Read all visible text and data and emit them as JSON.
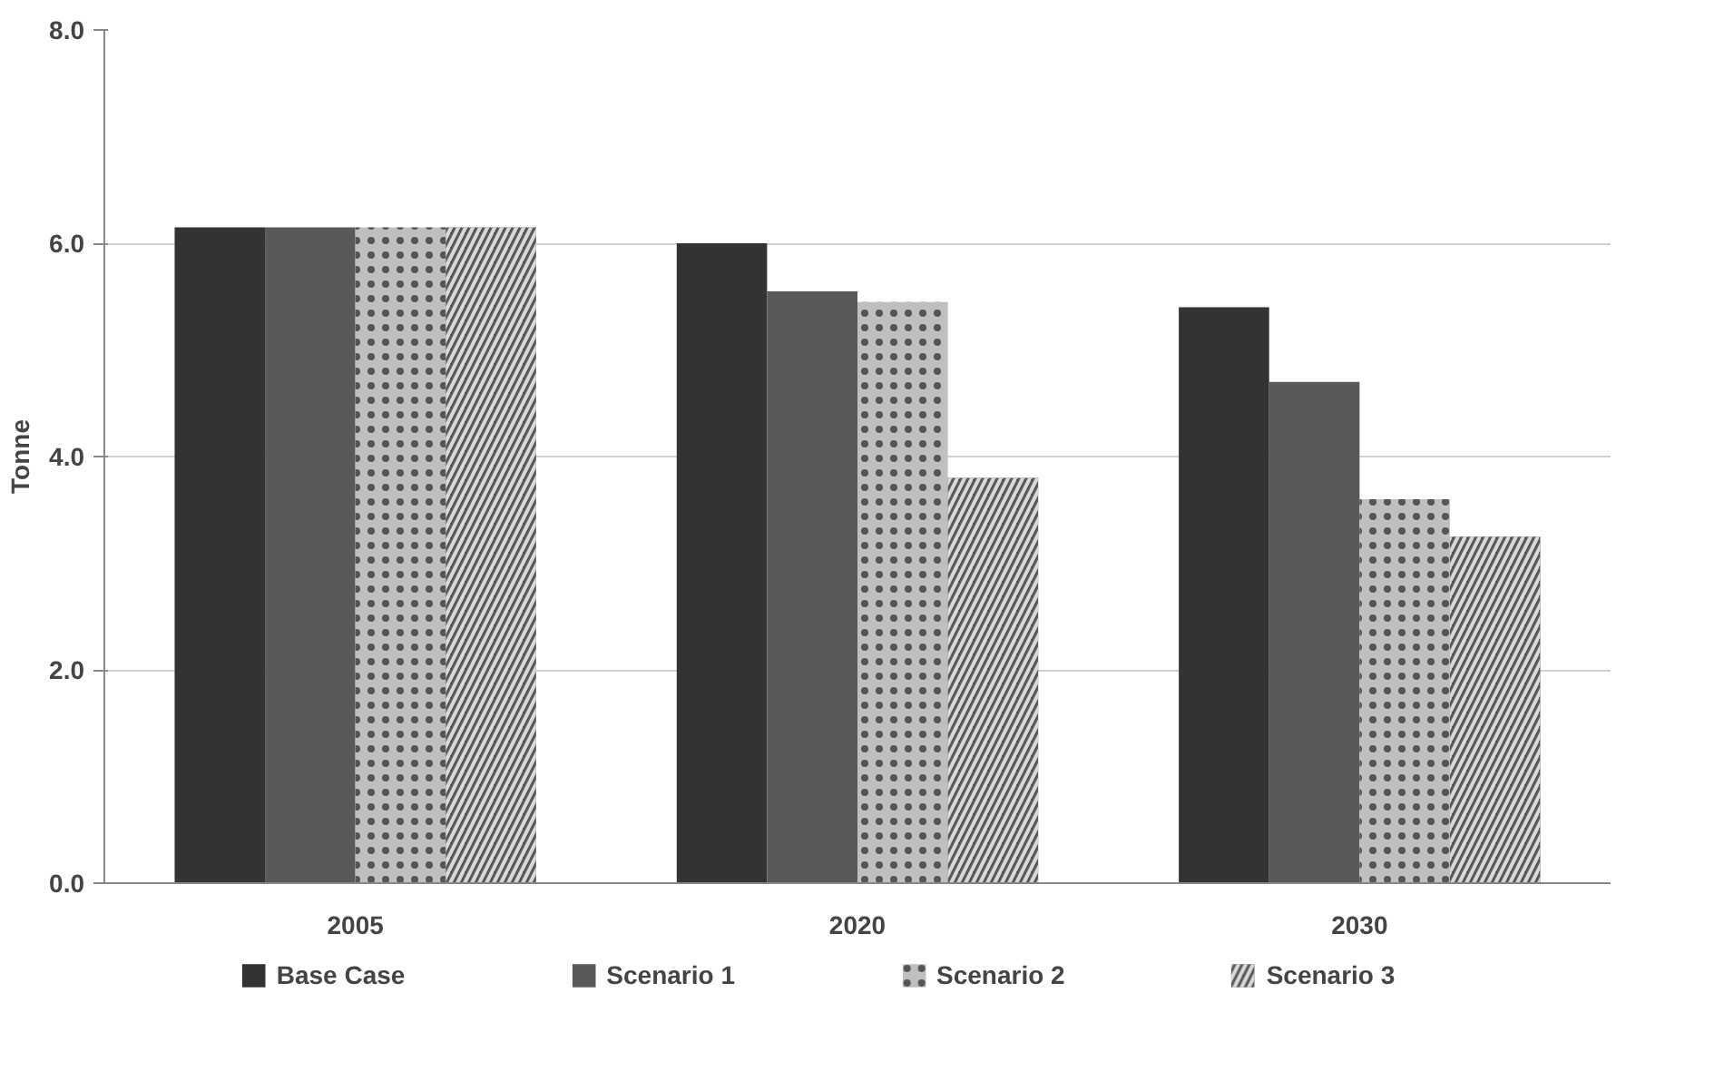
{
  "chart_data": {
    "type": "bar",
    "ylabel": "Tonne",
    "categories": [
      "2005",
      "2020",
      "2030"
    ],
    "series": [
      {
        "name": "Base Case",
        "color": "#333333",
        "values": [
          6.15,
          6.0,
          5.4
        ]
      },
      {
        "name": "Scenario 1",
        "color": "#595959",
        "values": [
          6.15,
          5.55,
          4.7
        ]
      },
      {
        "name": "Scenario 2",
        "color": "#bfbfbf",
        "values": [
          6.15,
          5.45,
          3.6
        ]
      },
      {
        "name": "Scenario 3",
        "color": "#595959",
        "values": [
          6.15,
          3.8,
          3.25
        ]
      }
    ],
    "ylim": [
      0,
      8
    ],
    "yticks": [
      {
        "value": 0,
        "label": "0.0"
      },
      {
        "value": 2,
        "label": "2.0"
      },
      {
        "value": 4,
        "label": "4.0"
      },
      {
        "value": 6,
        "label": "6.0"
      },
      {
        "value": 8,
        "label": "8.0"
      }
    ],
    "grid": "y",
    "legend": "bottom"
  }
}
